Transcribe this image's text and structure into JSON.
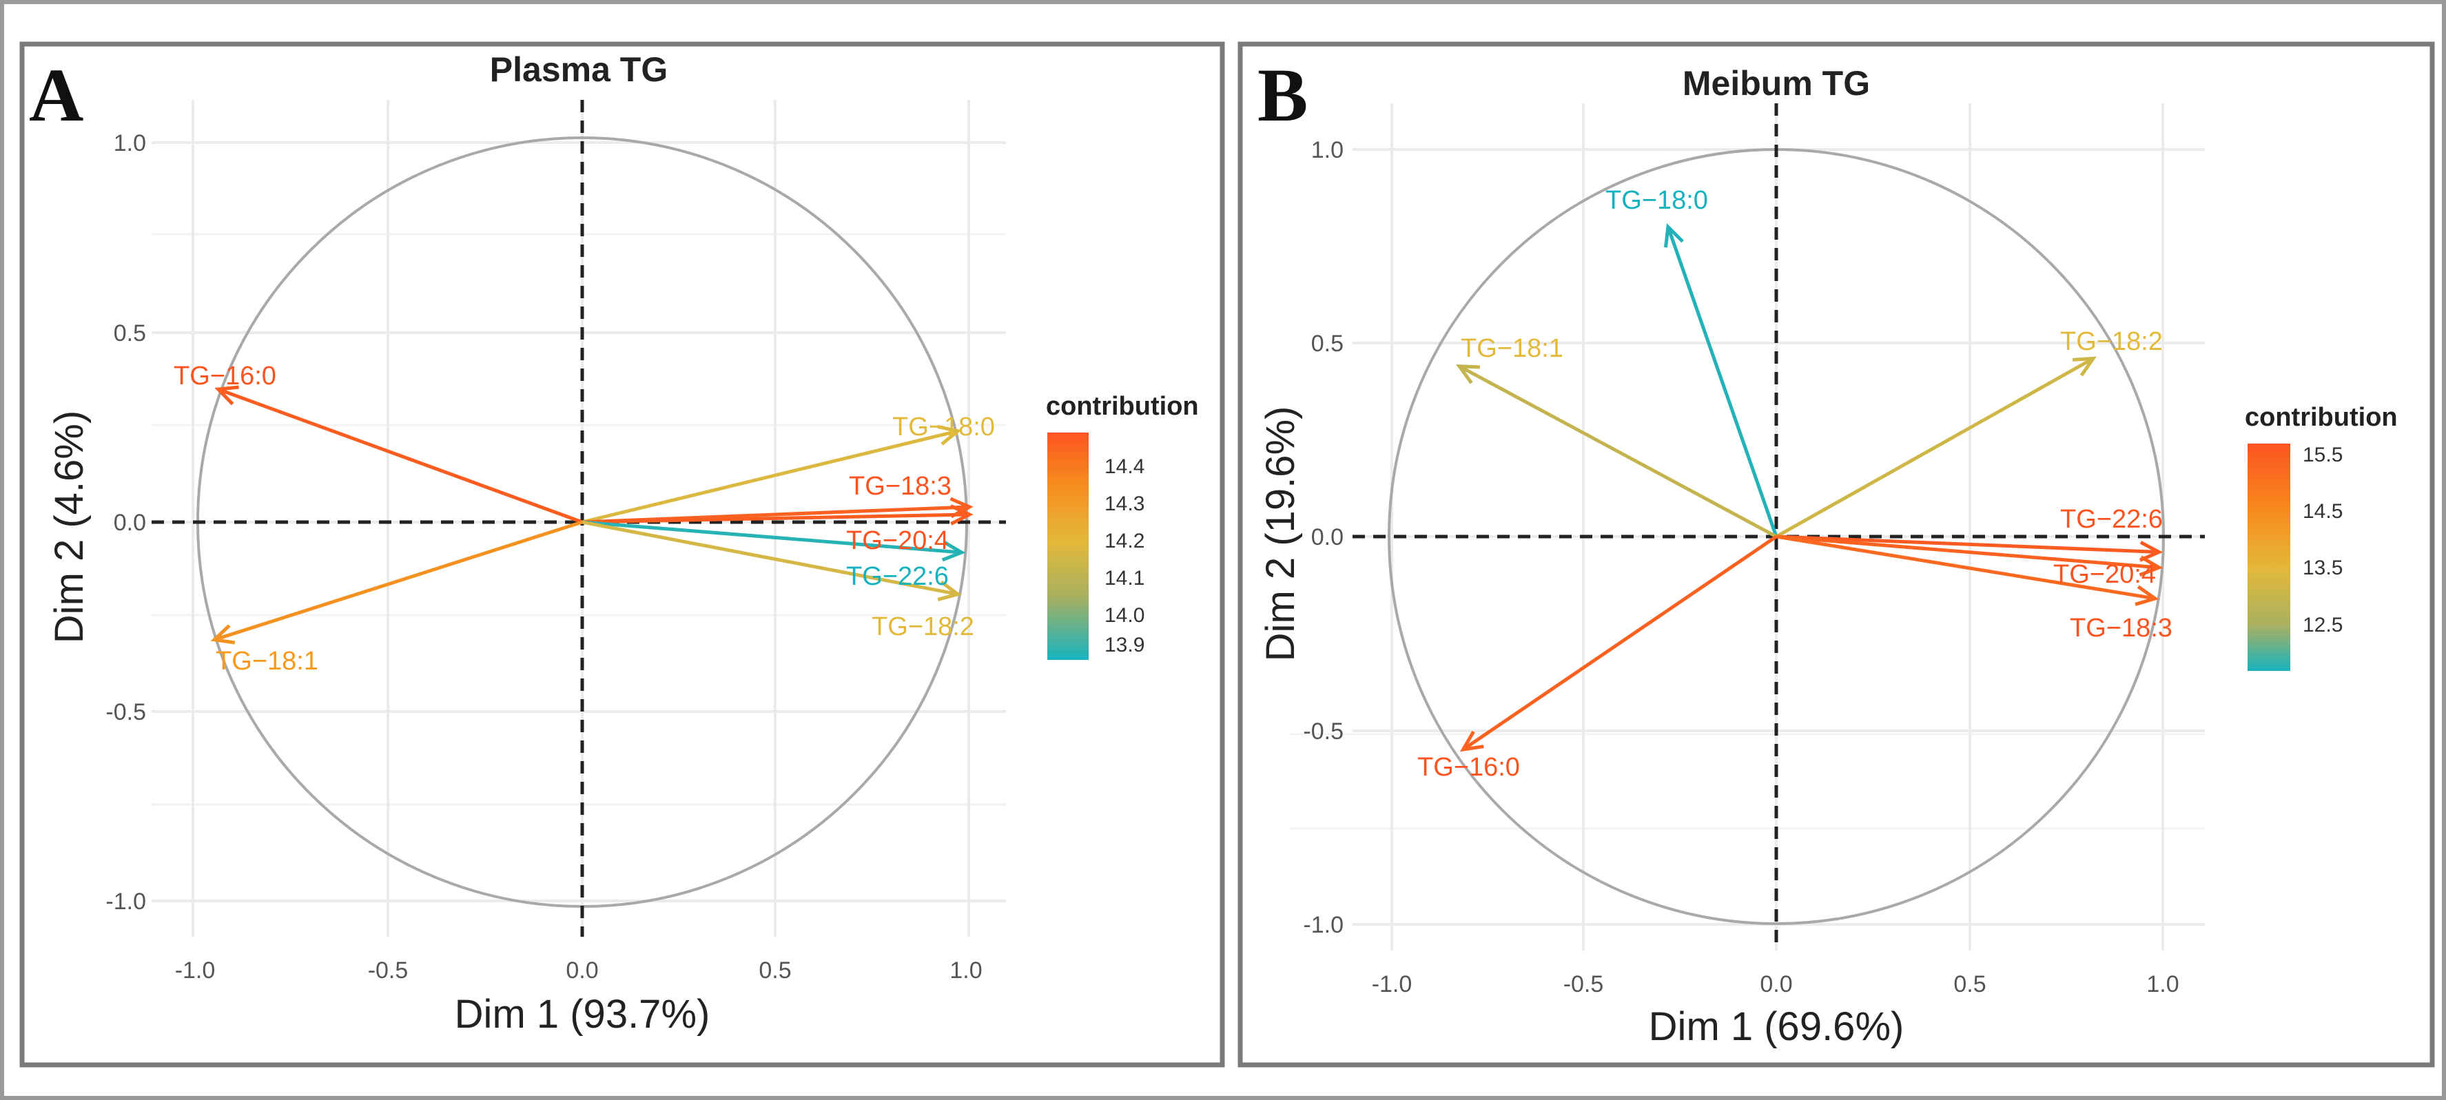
{
  "colors": {
    "high": "#fc5421",
    "mid_high": "#f79a1c",
    "mid": "#e3b93a",
    "low": "#17b2bf",
    "circle": "#a9a9a9",
    "grid": "#ebebeb",
    "text": "#222222",
    "tick": "#555555",
    "frame": "#7a7a7a",
    "outer_frame": "#9a9a9a"
  },
  "chart_data": [
    {
      "type": "pca-variable-correlation-circle",
      "panel_label": "A",
      "title": "Plasma TG",
      "xlabel": "Dim 1 (93.7%)",
      "ylabel": "Dim 2 (4.6%)",
      "xlim": [
        -1.0,
        1.0
      ],
      "ylim": [
        -1.0,
        1.0
      ],
      "xticks": [
        "-1.0",
        "-0.5",
        "0.0",
        "0.5",
        "1.0"
      ],
      "yticks": [
        "-1.0",
        "-0.5",
        "0.0",
        "0.5",
        "1.0"
      ],
      "legend": {
        "title": "contribution",
        "ticks": [
          "14.4",
          "14.3",
          "14.2",
          "14.1",
          "14.0",
          "13.9"
        ],
        "range": [
          13.85,
          14.47
        ],
        "placement": "right"
      },
      "variables": [
        {
          "name": "TG−16:0",
          "x": -0.94,
          "y": 0.35,
          "contribution": 14.45
        },
        {
          "name": "TG−18:1",
          "x": -0.95,
          "y": -0.31,
          "contribution": 14.32
        },
        {
          "name": "TG−18:0",
          "x": 0.97,
          "y": 0.24,
          "contribution": 14.17
        },
        {
          "name": "TG−18:3",
          "x": 1.0,
          "y": 0.04,
          "contribution": 14.44
        },
        {
          "name": "TG−20:4",
          "x": 1.0,
          "y": 0.02,
          "contribution": 14.45
        },
        {
          "name": "TG−22:6",
          "x": 0.98,
          "y": -0.08,
          "contribution": 13.87
        },
        {
          "name": "TG−18:2",
          "x": 0.97,
          "y": -0.19,
          "contribution": 14.15
        }
      ]
    },
    {
      "type": "pca-variable-correlation-circle",
      "panel_label": "B",
      "title": "Meibum TG",
      "xlabel": "Dim 1 (69.6%)",
      "ylabel": "Dim 2 (19.6%)",
      "xlim": [
        -1.0,
        1.0
      ],
      "ylim": [
        -1.0,
        1.0
      ],
      "xticks": [
        "-1.0",
        "-0.5",
        "0.0",
        "0.5",
        "1.0"
      ],
      "yticks": [
        "-1.0",
        "-0.5",
        "0.0",
        "0.5",
        "1.0"
      ],
      "legend": {
        "title": "contribution",
        "ticks": [
          "15.5",
          "14.5",
          "13.5",
          "12.5"
        ],
        "range": [
          11.8,
          15.7
        ],
        "placement": "right"
      },
      "variables": [
        {
          "name": "TG−18:0",
          "x": -0.28,
          "y": 0.8,
          "contribution": 11.9
        },
        {
          "name": "TG−18:1",
          "x": -0.82,
          "y": 0.44,
          "contribution": 13.4
        },
        {
          "name": "TG−18:2",
          "x": 0.82,
          "y": 0.46,
          "contribution": 13.6
        },
        {
          "name": "TG−22:6",
          "x": 0.99,
          "y": -0.04,
          "contribution": 15.6
        },
        {
          "name": "TG−20:4",
          "x": 0.99,
          "y": -0.08,
          "contribution": 15.5
        },
        {
          "name": "TG−18:3",
          "x": 0.98,
          "y": -0.16,
          "contribution": 15.4
        },
        {
          "name": "TG−16:0",
          "x": -0.81,
          "y": -0.55,
          "contribution": 15.5
        }
      ]
    }
  ]
}
